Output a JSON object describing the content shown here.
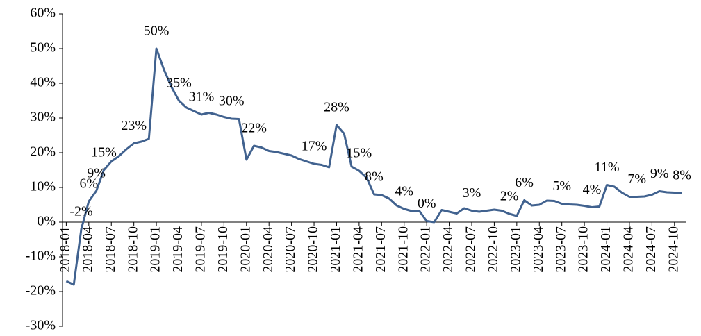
{
  "chart_data": {
    "type": "line",
    "categories": [
      "2018-01",
      null,
      null,
      "2018-04",
      null,
      null,
      "2018-07",
      null,
      null,
      "2018-10",
      null,
      null,
      "2019-01",
      null,
      null,
      "2019-04",
      null,
      null,
      "2019-07",
      null,
      null,
      "2019-10",
      null,
      null,
      "2020-01",
      null,
      null,
      "2020-04",
      null,
      null,
      "2020-07",
      null,
      null,
      "2020-10",
      null,
      null,
      "2021-01",
      null,
      null,
      "2021-04",
      null,
      null,
      "2021-07",
      null,
      null,
      "2021-10",
      null,
      null,
      "2022-01",
      null,
      null,
      "2022-04",
      null,
      null,
      "2022-07",
      null,
      null,
      "2022-10",
      null,
      null,
      "2023-01",
      null,
      null,
      "2023-04",
      null,
      null,
      "2023-07",
      null,
      null,
      "2023-10",
      null,
      null,
      "2024-01",
      null,
      null,
      "2024-04",
      null,
      null,
      "2024-07",
      null,
      null,
      "2024-10",
      null
    ],
    "values": [
      -17,
      -18,
      -2,
      6,
      9,
      15,
      17.5,
      19,
      21,
      22.7,
      23.2,
      24,
      50,
      44,
      39,
      35,
      33,
      32,
      31,
      31.5,
      31,
      30.3,
      29.8,
      29.7,
      18,
      22,
      21.5,
      20.5,
      20.2,
      19.7,
      19.2,
      18.2,
      17.5,
      16.8,
      16.5,
      15.8,
      28,
      25.5,
      16,
      14.8,
      12.8,
      8,
      7.8,
      6.8,
      4.8,
      3.8,
      3.2,
      3.3,
      0.3,
      0,
      3.5,
      3,
      2.5,
      4,
      3.3,
      3,
      3.3,
      3.6,
      3.3,
      2.4,
      1.8,
      6.3,
      4.8,
      5,
      6.2,
      6.1,
      5.3,
      5.1,
      5,
      4.7,
      4.3,
      4.5,
      10.7,
      10.2,
      8.5,
      7.3,
      7.3,
      7.4,
      7.9,
      8.9,
      8.6,
      8.5,
      8.4
    ],
    "value_labels": [
      null,
      null,
      "-2%",
      "6%",
      "9%",
      "15%",
      null,
      null,
      null,
      "23%",
      null,
      null,
      "50%",
      null,
      null,
      "35%",
      null,
      null,
      "31%",
      null,
      null,
      null,
      "30%",
      null,
      null,
      "22%",
      null,
      null,
      null,
      null,
      null,
      null,
      null,
      "17%",
      null,
      null,
      "28%",
      null,
      null,
      "15%",
      null,
      "8%",
      null,
      null,
      null,
      "4%",
      null,
      null,
      "0%",
      null,
      null,
      null,
      null,
      null,
      "3%",
      null,
      null,
      null,
      null,
      "2%",
      null,
      "6%",
      null,
      null,
      null,
      null,
      "5%",
      null,
      null,
      null,
      "4%",
      null,
      "11%",
      null,
      null,
      null,
      "7%",
      null,
      null,
      "9%",
      null,
      null,
      "8%"
    ],
    "color": "#41628f",
    "ylim": [
      -30,
      60
    ],
    "yticks": [
      {
        "value": -30,
        "label": "-30%"
      },
      {
        "value": -20,
        "label": "-20%"
      },
      {
        "value": -10,
        "label": "-10%"
      },
      {
        "value": 0,
        "label": "0%"
      },
      {
        "value": 10,
        "label": "10%"
      },
      {
        "value": 20,
        "label": "20%"
      },
      {
        "value": 30,
        "label": "30%"
      },
      {
        "value": 40,
        "label": "40%"
      },
      {
        "value": 50,
        "label": "50%"
      },
      {
        "value": 60,
        "label": "60%"
      }
    ]
  }
}
